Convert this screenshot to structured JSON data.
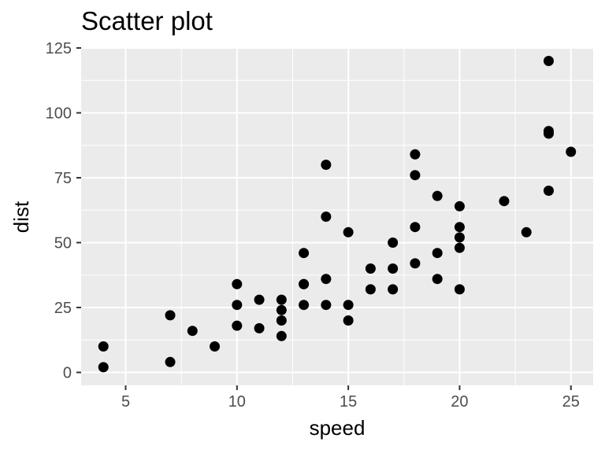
{
  "chart_data": {
    "type": "scatter",
    "title": "Scatter plot",
    "xlabel": "speed",
    "ylabel": "dist",
    "xlim": [
      3,
      26
    ],
    "ylim": [
      -5,
      125
    ],
    "x_ticks": [
      5,
      10,
      15,
      20,
      25
    ],
    "x_tick_labels": [
      "5",
      "10",
      "15",
      "20",
      "25"
    ],
    "y_ticks": [
      0,
      25,
      50,
      75,
      100,
      125
    ],
    "y_tick_labels": [
      "0",
      "25",
      "50",
      "75",
      "100",
      "125"
    ],
    "grid": true,
    "legend": "none",
    "colors": {
      "panel": "#ebebeb",
      "grid": "#ffffff",
      "point": "#000000"
    },
    "points": [
      [
        4,
        2
      ],
      [
        4,
        10
      ],
      [
        7,
        4
      ],
      [
        7,
        22
      ],
      [
        8,
        16
      ],
      [
        9,
        10
      ],
      [
        10,
        18
      ],
      [
        10,
        26
      ],
      [
        10,
        34
      ],
      [
        11,
        17
      ],
      [
        11,
        28
      ],
      [
        12,
        14
      ],
      [
        12,
        20
      ],
      [
        12,
        24
      ],
      [
        12,
        28
      ],
      [
        13,
        26
      ],
      [
        13,
        34
      ],
      [
        13,
        34
      ],
      [
        13,
        46
      ],
      [
        14,
        26
      ],
      [
        14,
        36
      ],
      [
        14,
        60
      ],
      [
        14,
        80
      ],
      [
        15,
        20
      ],
      [
        15,
        26
      ],
      [
        15,
        54
      ],
      [
        16,
        32
      ],
      [
        16,
        40
      ],
      [
        17,
        32
      ],
      [
        17,
        40
      ],
      [
        17,
        50
      ],
      [
        18,
        42
      ],
      [
        18,
        56
      ],
      [
        18,
        76
      ],
      [
        18,
        84
      ],
      [
        19,
        36
      ],
      [
        19,
        46
      ],
      [
        19,
        68
      ],
      [
        20,
        32
      ],
      [
        20,
        48
      ],
      [
        20,
        52
      ],
      [
        20,
        56
      ],
      [
        20,
        64
      ],
      [
        22,
        66
      ],
      [
        23,
        54
      ],
      [
        24,
        70
      ],
      [
        24,
        92
      ],
      [
        24,
        93
      ],
      [
        24,
        120
      ],
      [
        25,
        85
      ]
    ]
  }
}
